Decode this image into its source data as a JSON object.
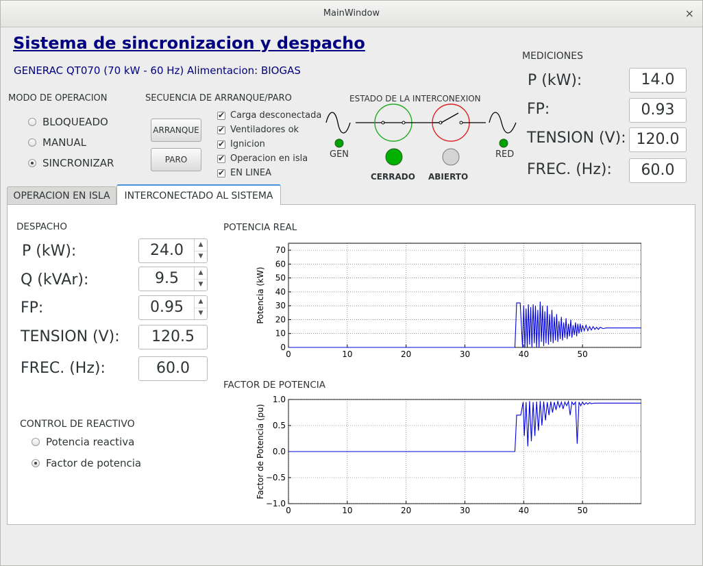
{
  "window": {
    "title": "MainWindow",
    "close_glyph": "×"
  },
  "header": {
    "title": "Sistema de sincronizacion y despacho",
    "subtitle": "GENERAC QT070 (70 kW - 60 Hz) Alimentacion: BIOGAS"
  },
  "modo": {
    "title": "MODO DE OPERACION",
    "options": [
      {
        "label": "BLOQUEADO",
        "selected": false
      },
      {
        "label": "MANUAL",
        "selected": false
      },
      {
        "label": "SINCRONIZAR",
        "selected": true
      }
    ]
  },
  "secuencia": {
    "title": "SECUENCIA DE ARRANQUE/PARO",
    "start_label": "ARRANQUE",
    "stop_label": "PARO",
    "checks": [
      {
        "label": "Carga desconectada",
        "checked": true
      },
      {
        "label": "Ventiladores ok",
        "checked": true
      },
      {
        "label": "Ignicion",
        "checked": true
      },
      {
        "label": "Operacion en isla",
        "checked": true
      },
      {
        "label": "EN LINEA",
        "checked": true
      }
    ]
  },
  "interconexion": {
    "title": "ESTADO DE LA INTERCONEXION",
    "gen_label": "GEN",
    "red_label": "RED",
    "closed_label": "CERRADO",
    "open_label": "ABIERTO",
    "gen_indicator_color": "#00a000",
    "red_indicator_color": "#00a000",
    "closed_indicator_color": "#00b000",
    "open_indicator_color": "#d4d4d4",
    "closed_breaker_color": "#22aa22",
    "open_breaker_color": "#dd2222"
  },
  "mediciones": {
    "title": "MEDICIONES",
    "rows": [
      {
        "label": "P (kW):",
        "value": "14.0"
      },
      {
        "label": "FP:",
        "value": "0.93"
      },
      {
        "label": "TENSION (V):",
        "value": "120.0"
      },
      {
        "label": "FREC. (Hz):",
        "value": "60.0"
      }
    ]
  },
  "tabs": [
    {
      "label": "OPERACION EN ISLA",
      "active": false
    },
    {
      "label": "INTERCONECTADO AL SISTEMA",
      "active": true
    }
  ],
  "despacho": {
    "title": "DESPACHO",
    "rows": [
      {
        "label": "P (kW):",
        "value": "24.0",
        "spin": true
      },
      {
        "label": "Q (kVAr):",
        "value": "9.5",
        "spin": true
      },
      {
        "label": "FP:",
        "value": "0.95",
        "spin": true
      },
      {
        "label": "TENSION (V):",
        "value": "120.5",
        "spin": false
      },
      {
        "label": "FREC. (Hz):",
        "value": "60.0",
        "spin": false
      }
    ]
  },
  "control_reactivo": {
    "title": "CONTROL DE REACTIVO",
    "options": [
      {
        "label": "Potencia reactiva",
        "selected": false
      },
      {
        "label": "Factor de potencia",
        "selected": true
      }
    ]
  },
  "chart_data": [
    {
      "type": "line",
      "title": "POTENCIA REAL",
      "xlabel": "",
      "ylabel": "Potencia (kW)",
      "xlim": [
        0,
        60
      ],
      "ylim": [
        0,
        75
      ],
      "xticks": [
        0,
        10,
        20,
        30,
        40,
        50
      ],
      "yticks": [
        0,
        10,
        20,
        30,
        40,
        50,
        60,
        70
      ],
      "ytick_labels": [
        "0",
        "10",
        "20",
        "30",
        "40",
        "50",
        "60",
        "70"
      ],
      "grid": true,
      "color": "#0000dd",
      "series": [
        {
          "x": [
            0,
            38.5,
            38.8,
            39.0,
            39.4,
            39.8,
            40.0,
            40.2,
            40.4,
            40.6,
            40.8,
            41.0,
            41.2,
            41.4,
            41.6,
            41.8,
            42.0,
            42.2,
            42.4,
            42.6,
            42.8,
            43.0,
            43.2,
            43.4,
            43.6,
            43.8,
            44.0,
            44.2,
            44.4,
            44.6,
            44.8,
            45.0,
            45.2,
            45.4,
            45.6,
            45.8,
            46.0,
            46.2,
            46.4,
            46.6,
            46.8,
            47.0,
            47.2,
            47.4,
            47.6,
            47.8,
            48.0,
            48.2,
            48.4,
            48.6,
            48.8,
            49.0,
            49.2,
            49.4,
            49.6,
            49.8,
            50.0,
            50.3,
            50.6,
            50.9,
            51.2,
            51.5,
            51.8,
            52.1,
            52.4,
            52.7,
            53.0,
            53.5,
            54,
            55,
            56,
            57,
            58,
            60
          ],
          "y": [
            0,
            0,
            32,
            32,
            32,
            0,
            30,
            0,
            28,
            0,
            31,
            2,
            29,
            0,
            31,
            3,
            30,
            0,
            27,
            0,
            33,
            4,
            30,
            1,
            26,
            3,
            30,
            2,
            24,
            4,
            27,
            3,
            22,
            5,
            24,
            4,
            19,
            6,
            22,
            5,
            18,
            7,
            21,
            6,
            17,
            8,
            20,
            7,
            16,
            9,
            18,
            8,
            17,
            10,
            17,
            11,
            16,
            12,
            16,
            12,
            15,
            12.5,
            15,
            13,
            14.5,
            13,
            14.5,
            13.5,
            14,
            14,
            14,
            14,
            14,
            14
          ]
        }
      ]
    },
    {
      "type": "line",
      "title": "FACTOR DE POTENCIA",
      "xlabel": "",
      "ylabel": "Factor de Potencia (pu)",
      "xlim": [
        0,
        60
      ],
      "ylim": [
        -1.0,
        1.0
      ],
      "xticks": [
        0,
        10,
        20,
        30,
        40,
        50
      ],
      "yticks": [
        -1.0,
        -0.5,
        0.0,
        0.5,
        1.0
      ],
      "ytick_labels": [
        "−1.0",
        "−0.5",
        "0.0",
        "0.5",
        "1.0"
      ],
      "grid": true,
      "color": "#0000dd",
      "series": [
        {
          "x": [
            0,
            38.5,
            38.8,
            39.0,
            39.5,
            39.9,
            40.1,
            40.4,
            40.7,
            41.0,
            41.3,
            41.6,
            41.9,
            42.2,
            42.5,
            42.8,
            43.1,
            43.4,
            43.7,
            44.0,
            44.3,
            44.6,
            44.9,
            45.2,
            45.5,
            45.8,
            46.1,
            46.4,
            46.7,
            47.0,
            47.3,
            47.6,
            47.9,
            48.2,
            48.5,
            48.8,
            49.1,
            49.4,
            49.7,
            50.0,
            50.3,
            50.6,
            50.9,
            51.2,
            51.5,
            52,
            60
          ],
          "y": [
            0,
            0,
            0.7,
            0.7,
            0.7,
            0.95,
            0.3,
            0.95,
            0.1,
            0.97,
            0.2,
            0.95,
            0.3,
            0.96,
            0.4,
            0.97,
            0.5,
            0.96,
            0.6,
            0.95,
            0.7,
            0.96,
            0.75,
            0.95,
            0.8,
            0.96,
            0.85,
            0.95,
            0.82,
            0.95,
            0.88,
            0.96,
            0.7,
            0.95,
            0.9,
            0.95,
            0.15,
            0.95,
            0.88,
            0.95,
            0.9,
            0.94,
            0.91,
            0.94,
            0.92,
            0.93,
            0.93
          ]
        }
      ]
    }
  ]
}
